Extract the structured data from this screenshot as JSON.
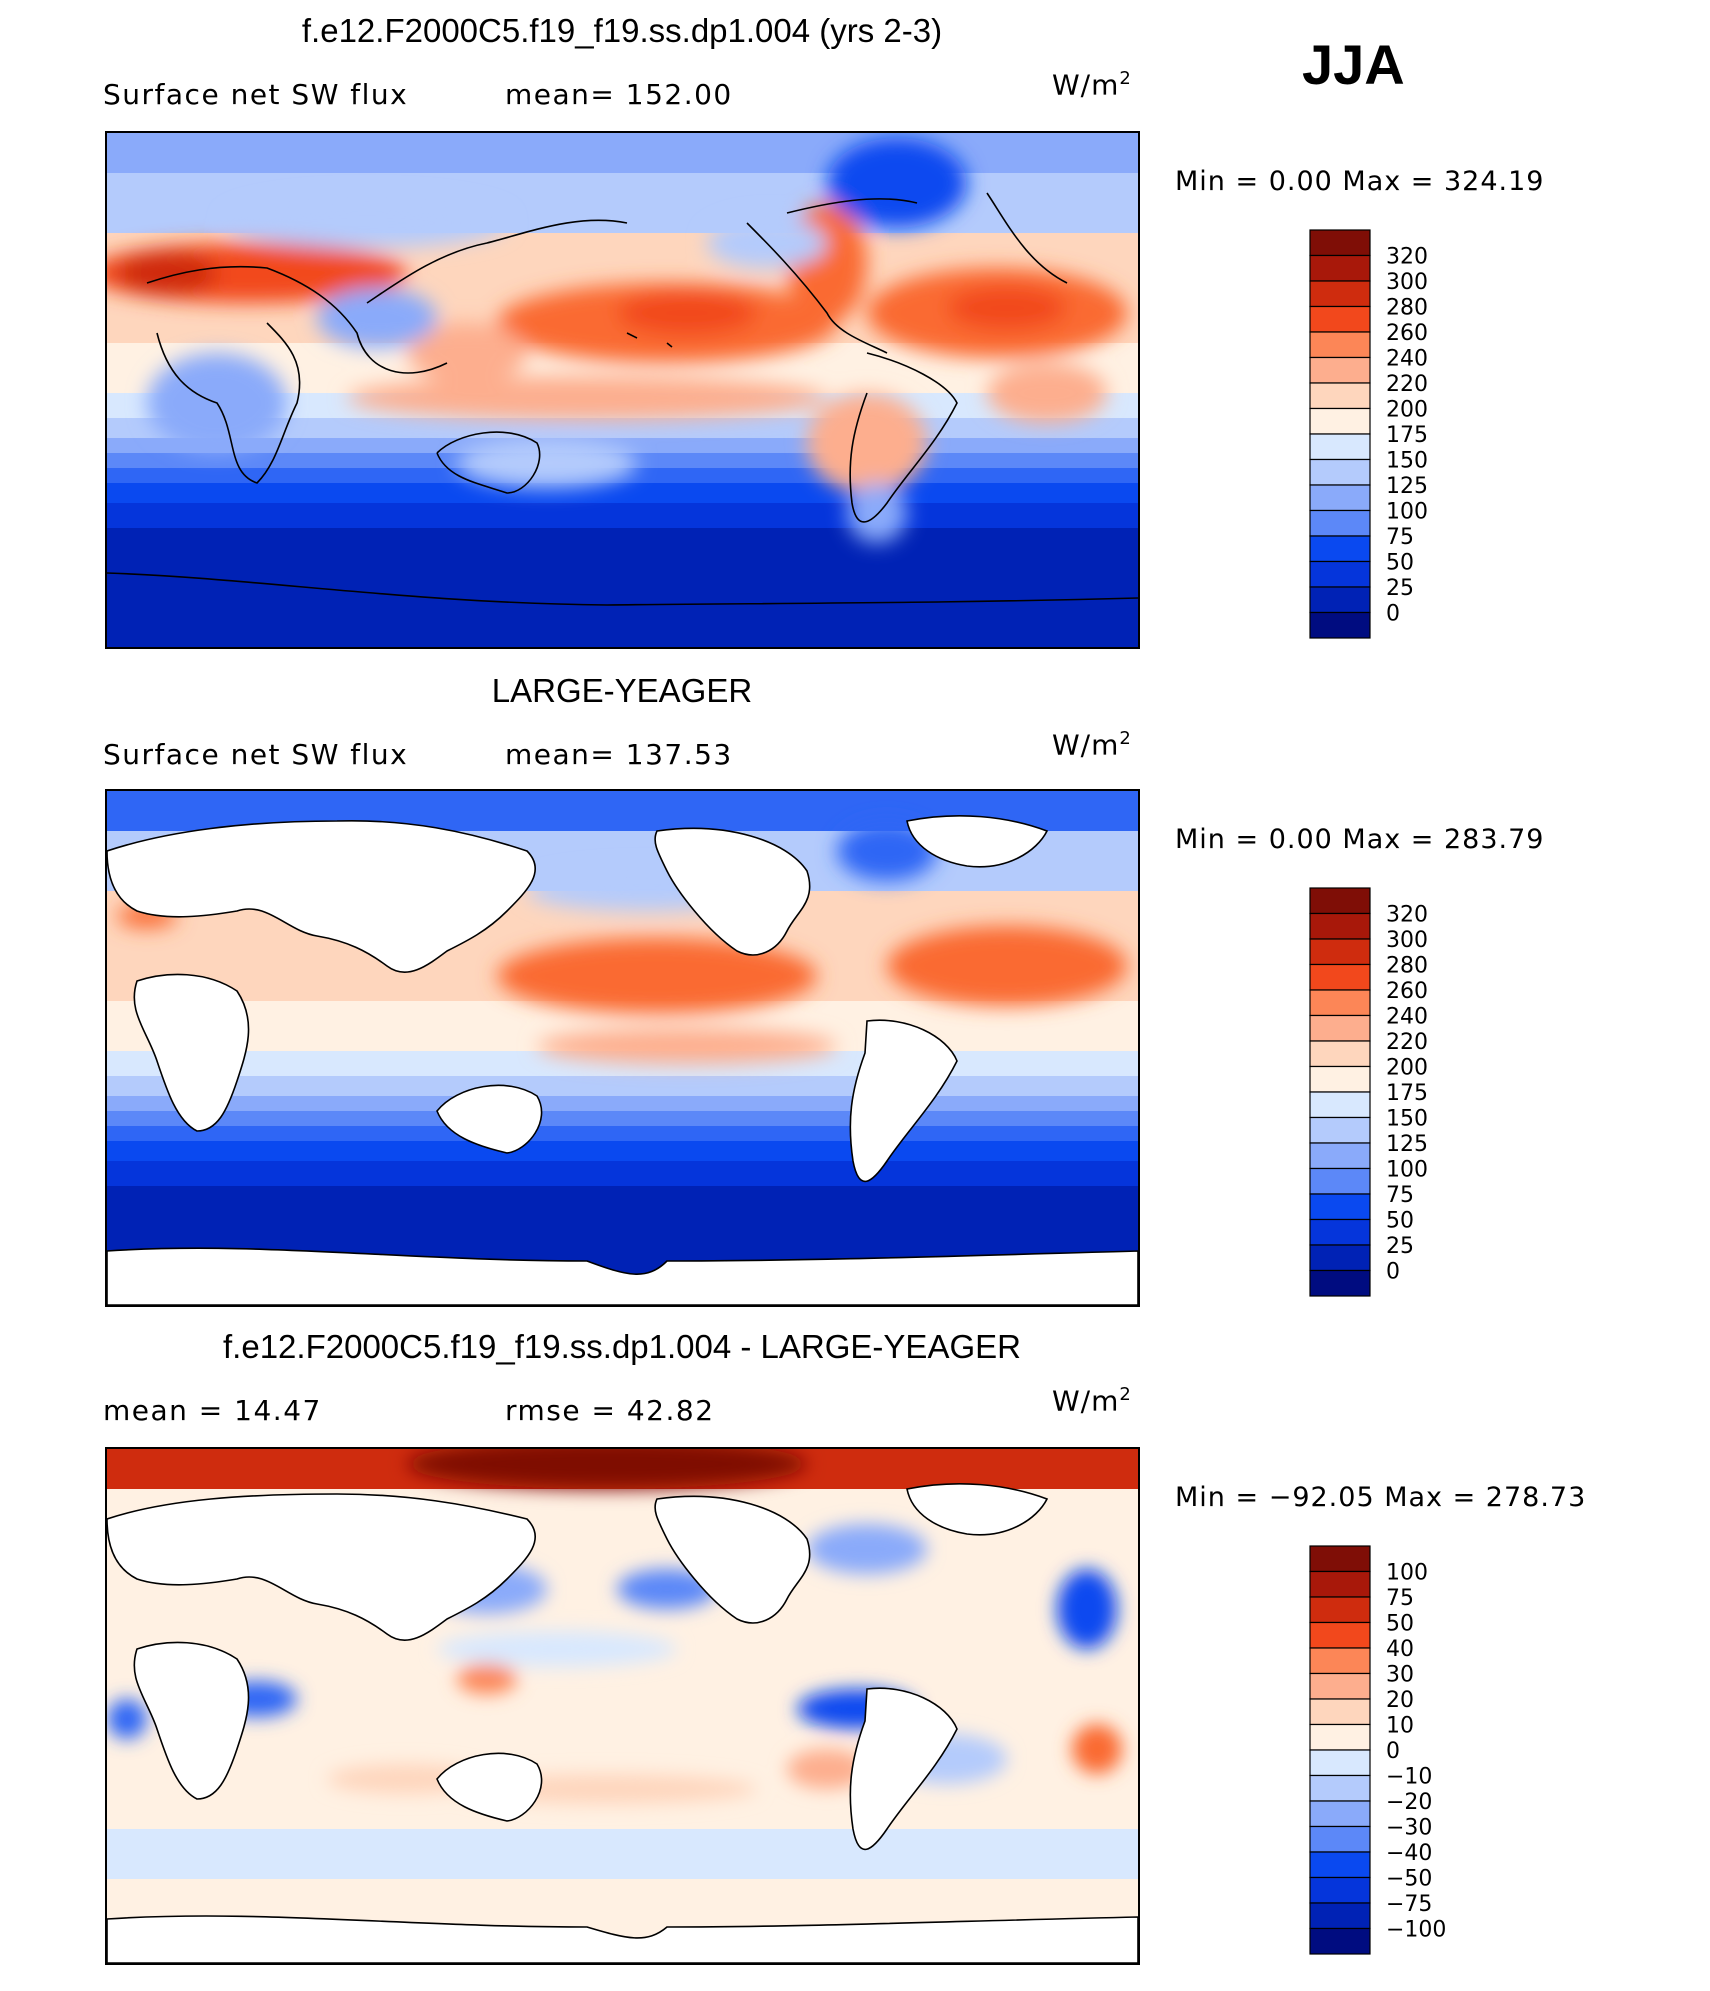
{
  "season": "JJA",
  "colors": {
    "positive_scale": [
      "#000c80",
      "#0022b5",
      "#0535db",
      "#0a49f0",
      "#2f66f5",
      "#5c88f8",
      "#8aaafa",
      "#b4cbfc",
      "#d8e8fe",
      "#fff1e3",
      "#fed6bd",
      "#fdae8e",
      "#fc8657",
      "#fa6a31",
      "#f2481c",
      "#cf2c0e",
      "#a8180a",
      "#7f0e06"
    ],
    "diff_scale": [
      "#000c80",
      "#0022b5",
      "#0535db",
      "#0a49f0",
      "#2f66f5",
      "#5c88f8",
      "#8aaafa",
      "#b4cbfc",
      "#d8e8fe",
      "#fff1e3",
      "#fed6bd",
      "#fdae8e",
      "#fc8657",
      "#fa6a31",
      "#f2481c",
      "#cf2c0e",
      "#a8180a",
      "#7f0e06"
    ]
  },
  "panels": [
    {
      "title": "f.e12.F2000C5.f19_f19.ss.dp1.004 (yrs 2-3)",
      "left_label": "Surface net SW flux",
      "mid_label": "mean=  152.00",
      "unit": "W/m",
      "unit_exp": "2",
      "minmax": "Min  =    0.00  Max  =  324.19",
      "levels": [
        "320",
        "300",
        "280",
        "260",
        "240",
        "220",
        "200",
        "175",
        "150",
        "125",
        "100",
        "75",
        "50",
        "25",
        "0"
      ],
      "land_masked": false
    },
    {
      "title": "LARGE-YEAGER",
      "left_label": "Surface net SW flux",
      "mid_label": "mean=  137.53",
      "unit": "W/m",
      "unit_exp": "2",
      "minmax": "Min  =    0.00  Max  =  283.79",
      "levels": [
        "320",
        "300",
        "280",
        "260",
        "240",
        "220",
        "200",
        "175",
        "150",
        "125",
        "100",
        "75",
        "50",
        "25",
        "0"
      ],
      "land_masked": true
    },
    {
      "title": "f.e12.F2000C5.f19_f19.ss.dp1.004 - LARGE-YEAGER",
      "left_label": "mean  =    14.47",
      "mid_label": "rmse  =    42.82",
      "unit": "W/m",
      "unit_exp": "2",
      "minmax": "Min  =  −92.05  Max  =  278.73",
      "levels": [
        "100",
        "75",
        "50",
        "40",
        "30",
        "20",
        "10",
        "0",
        "−10",
        "−20",
        "−30",
        "−40",
        "−50",
        "−75",
        "−100"
      ],
      "land_masked": true
    }
  ]
}
